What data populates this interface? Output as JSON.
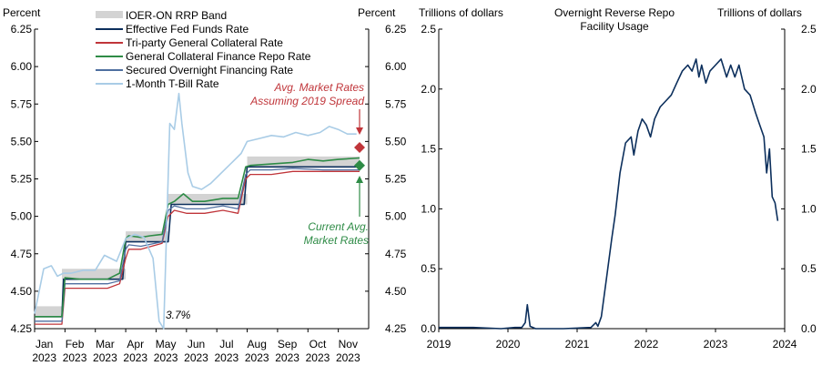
{
  "chart_data": [
    {
      "type": "line",
      "panel": "left",
      "ylabel_left": "Percent",
      "ylabel_right": "Percent",
      "ylim": [
        4.25,
        6.25
      ],
      "yticks": [
        "4.25",
        "4.50",
        "4.75",
        "5.00",
        "5.25",
        "5.50",
        "5.75",
        "6.00",
        "6.25"
      ],
      "ytick_values": [
        4.25,
        4.5,
        4.75,
        5.0,
        5.25,
        5.5,
        5.75,
        6.0,
        6.25
      ],
      "x_categories": [
        {
          "month": "Jan",
          "year": "2023"
        },
        {
          "month": "Feb",
          "year": "2023"
        },
        {
          "month": "Mar",
          "year": "2023"
        },
        {
          "month": "Apr",
          "year": "2023"
        },
        {
          "month": "May",
          "year": "2023"
        },
        {
          "month": "Jun",
          "year": "2023"
        },
        {
          "month": "Jul",
          "year": "2023"
        },
        {
          "month": "Aug",
          "year": "2023"
        },
        {
          "month": "Sep",
          "year": "2023"
        },
        {
          "month": "Oct",
          "year": "2023"
        },
        {
          "month": "Nov",
          "year": "2023"
        }
      ],
      "legend": [
        {
          "name": "IOER-ON RRP Band",
          "color": "#d3d3d3",
          "kind": "band"
        },
        {
          "name": "Effective Fed Funds Rate",
          "color": "#0c2f5c",
          "kind": "line"
        },
        {
          "name": "Tri-party General Collateral Rate",
          "color": "#c0353a",
          "kind": "line"
        },
        {
          "name": "General Collateral Finance Repo Rate",
          "color": "#2e8b46",
          "kind": "line"
        },
        {
          "name": "Secured Overnight Financing Rate",
          "color": "#4f6fa0",
          "kind": "line"
        },
        {
          "name": "1-Month T-Bill Rate",
          "color": "#a9cce6",
          "kind": "line"
        }
      ],
      "band": {
        "x": [
          0,
          0.9,
          0.9,
          3.0,
          3.0,
          4.4,
          4.4,
          7.0,
          7.0,
          10.7
        ],
        "lower": [
          4.33,
          4.33,
          4.58,
          4.58,
          4.83,
          4.83,
          5.08,
          5.08,
          5.33,
          5.33
        ],
        "upper": [
          4.4,
          4.4,
          4.65,
          4.65,
          4.9,
          4.9,
          5.15,
          5.15,
          5.4,
          5.4
        ]
      },
      "series": [
        {
          "name": "Effective Fed Funds Rate",
          "color": "#0c2f5c",
          "width": 1.6,
          "x": [
            0,
            0.9,
            0.95,
            1.2,
            2.4,
            2.9,
            3.0,
            3.1,
            4.3,
            4.4,
            4.5,
            5.5,
            6.5,
            6.9,
            7.0,
            7.1,
            10.7
          ],
          "y": [
            4.33,
            4.33,
            4.58,
            4.58,
            4.58,
            4.58,
            4.83,
            4.83,
            4.83,
            4.83,
            5.08,
            5.08,
            5.08,
            5.08,
            5.33,
            5.33,
            5.33
          ]
        },
        {
          "name": "Tri-party General Collateral Rate",
          "color": "#c0353a",
          "width": 1.3,
          "x": [
            0,
            0.9,
            1.0,
            1.5,
            2.4,
            2.8,
            3.0,
            3.1,
            3.5,
            4.2,
            4.4,
            4.6,
            5.0,
            5.6,
            6.2,
            6.7,
            6.95,
            7.1,
            7.8,
            8.5,
            9.5,
            10.7
          ],
          "y": [
            4.28,
            4.28,
            4.52,
            4.52,
            4.52,
            4.55,
            4.72,
            4.78,
            4.78,
            4.82,
            5.0,
            5.04,
            5.02,
            5.02,
            5.04,
            5.02,
            5.25,
            5.28,
            5.28,
            5.3,
            5.3,
            5.3
          ]
        },
        {
          "name": "Secured Overnight Financing Rate",
          "color": "#4f6fa0",
          "width": 1.3,
          "x": [
            0,
            0.9,
            1.0,
            1.5,
            2.4,
            2.8,
            3.0,
            3.1,
            3.5,
            4.2,
            4.4,
            4.6,
            5.0,
            5.6,
            6.2,
            6.7,
            6.95,
            7.1,
            7.8,
            8.5,
            9.5,
            10.7
          ],
          "y": [
            4.3,
            4.3,
            4.55,
            4.55,
            4.55,
            4.57,
            4.78,
            4.81,
            4.8,
            4.83,
            5.04,
            5.07,
            5.05,
            5.05,
            5.07,
            5.05,
            5.28,
            5.31,
            5.31,
            5.32,
            5.31,
            5.31
          ]
        },
        {
          "name": "General Collateral Finance Repo Rate",
          "color": "#2e8b46",
          "width": 1.6,
          "x": [
            0,
            0.9,
            1.0,
            1.5,
            2.0,
            2.4,
            2.8,
            3.0,
            3.1,
            3.5,
            3.8,
            4.2,
            4.4,
            4.6,
            4.9,
            5.2,
            5.6,
            6.2,
            6.7,
            6.95,
            7.1,
            7.8,
            8.5,
            9.0,
            9.5,
            10.0,
            10.7
          ],
          "y": [
            4.33,
            4.33,
            4.59,
            4.58,
            4.58,
            4.58,
            4.62,
            4.85,
            4.87,
            4.86,
            4.87,
            4.88,
            5.08,
            5.1,
            5.15,
            5.1,
            5.1,
            5.12,
            5.12,
            5.33,
            5.34,
            5.35,
            5.36,
            5.38,
            5.37,
            5.38,
            5.39
          ]
        },
        {
          "name": "1-Month T-Bill Rate",
          "color": "#a9cce6",
          "width": 1.6,
          "x": [
            0,
            0.3,
            0.55,
            0.75,
            0.95,
            1.2,
            1.6,
            2.0,
            2.3,
            2.7,
            3.0,
            3.3,
            3.6,
            3.9,
            4.1,
            4.25,
            4.45,
            4.6,
            4.75,
            4.85,
            5.05,
            5.2,
            5.5,
            5.8,
            6.1,
            6.5,
            6.8,
            7.0,
            7.4,
            7.8,
            8.2,
            8.6,
            9.0,
            9.4,
            9.7,
            10.0,
            10.3,
            10.6
          ],
          "y": [
            4.35,
            4.65,
            4.67,
            4.6,
            4.62,
            4.62,
            4.64,
            4.64,
            4.74,
            4.7,
            4.85,
            4.88,
            4.86,
            4.72,
            4.3,
            4.25,
            5.62,
            5.58,
            5.82,
            5.62,
            5.29,
            5.2,
            5.18,
            5.22,
            5.28,
            5.36,
            5.42,
            5.5,
            5.52,
            5.54,
            5.53,
            5.56,
            5.54,
            5.56,
            5.6,
            5.58,
            5.55,
            5.55
          ]
        }
      ],
      "markers": [
        {
          "label": "Avg. Market Rates Assuming 2019 Spread",
          "value": 5.46,
          "color": "#c0353a"
        },
        {
          "label": "Current Avg. Market Rates",
          "value": 5.34,
          "color": "#2e8b46"
        }
      ],
      "annotations": {
        "avg_market_2019_line1": "Avg. Market Rates",
        "avg_market_2019_line2": "Assuming 2019 Spread",
        "current_avg_line1": "Current Avg.",
        "current_avg_line2": "Market Rates",
        "tbill_note": "3.7%"
      }
    },
    {
      "type": "line",
      "panel": "right",
      "title_line1": "Overnight Reverse Repo",
      "title_line2": "Facility Usage",
      "ylabel_left": "Trillions of dollars",
      "ylabel_right": "Trillions of dollars",
      "ylim": [
        0,
        2.5
      ],
      "yticks": [
        "0.0",
        "0.5",
        "1.0",
        "1.5",
        "2.0",
        "2.5"
      ],
      "ytick_values": [
        0,
        0.5,
        1.0,
        1.5,
        2.0,
        2.5
      ],
      "xlim": [
        2019,
        2024
      ],
      "xticks": [
        "2019",
        "2020",
        "2021",
        "2022",
        "2023",
        "2024"
      ],
      "series": [
        {
          "name": "Overnight Reverse Repo Facility Usage",
          "color": "#0c2f5c",
          "width": 1.6,
          "x": [
            2019.0,
            2019.5,
            2019.9,
            2020.1,
            2020.2,
            2020.25,
            2020.28,
            2020.32,
            2020.4,
            2020.8,
            2021.2,
            2021.27,
            2021.3,
            2021.35,
            2021.42,
            2021.5,
            2021.55,
            2021.62,
            2021.7,
            2021.78,
            2021.82,
            2021.88,
            2021.94,
            2022.0,
            2022.06,
            2022.12,
            2022.2,
            2022.28,
            2022.36,
            2022.44,
            2022.52,
            2022.6,
            2022.66,
            2022.72,
            2022.76,
            2022.8,
            2022.86,
            2022.92,
            2023.0,
            2023.08,
            2023.16,
            2023.22,
            2023.28,
            2023.34,
            2023.42,
            2023.5,
            2023.58,
            2023.64,
            2023.7,
            2023.74,
            2023.78,
            2023.82,
            2023.86,
            2023.9
          ],
          "y": [
            0.01,
            0.01,
            0.0,
            0.01,
            0.01,
            0.05,
            0.2,
            0.02,
            0.0,
            0.0,
            0.01,
            0.05,
            0.02,
            0.1,
            0.4,
            0.75,
            0.95,
            1.3,
            1.55,
            1.6,
            1.45,
            1.65,
            1.75,
            1.7,
            1.6,
            1.75,
            1.85,
            1.9,
            1.95,
            2.05,
            2.15,
            2.2,
            2.15,
            2.25,
            2.1,
            2.2,
            2.05,
            2.15,
            2.2,
            2.25,
            2.1,
            2.2,
            2.1,
            2.2,
            2.0,
            1.95,
            1.8,
            1.7,
            1.6,
            1.3,
            1.5,
            1.1,
            1.05,
            0.9
          ]
        }
      ]
    }
  ]
}
